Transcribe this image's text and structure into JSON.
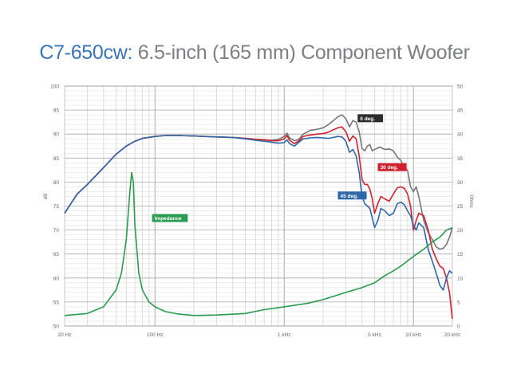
{
  "header": {
    "model": "C7-650cw:",
    "description": " 6.5-inch (165 mm) Component Woofer"
  },
  "chart_data": {
    "type": "line",
    "title": "C7-650cw: 6.5-inch (165 mm) Component Woofer",
    "xlabel": "",
    "x_scale": "log",
    "xlim": [
      20,
      20000
    ],
    "x_ticks": [
      {
        "value": 20,
        "label": "20 Hz"
      },
      {
        "value": 100,
        "label": "100 Hz"
      },
      {
        "value": 1000,
        "label": "1 kHz"
      },
      {
        "value": 5000,
        "label": "5 kHz"
      },
      {
        "value": 10000,
        "label": "10 kHz"
      },
      {
        "value": 20000,
        "label": "20 kHz"
      }
    ],
    "ylabel_left": "dB",
    "ylim_left": [
      50,
      100
    ],
    "y_ticks_left": [
      50,
      55,
      60,
      65,
      70,
      75,
      80,
      85,
      90,
      95,
      100
    ],
    "ylabel_right": "Ohms",
    "ylim_right": [
      0,
      50
    ],
    "y_ticks_right": [
      0,
      5,
      10,
      15,
      20,
      25,
      30,
      35,
      40,
      45,
      50
    ],
    "grid": true,
    "series": [
      {
        "name": "0 deg.",
        "axis": "left",
        "color": "#76777a",
        "label_color": "#2b2b2b",
        "label_at": [
          3700,
          93.3
        ],
        "points": [
          [
            20,
            73.5
          ],
          [
            25,
            77.5
          ],
          [
            30,
            79.5
          ],
          [
            40,
            83
          ],
          [
            50,
            85.8
          ],
          [
            60,
            87.5
          ],
          [
            70,
            88.5
          ],
          [
            80,
            89.1
          ],
          [
            100,
            89.5
          ],
          [
            120,
            89.7
          ],
          [
            150,
            89.7
          ],
          [
            200,
            89.6
          ],
          [
            300,
            89.4
          ],
          [
            400,
            89.3
          ],
          [
            500,
            89.1
          ],
          [
            600,
            88.9
          ],
          [
            700,
            88.8
          ],
          [
            800,
            88.7
          ],
          [
            900,
            88.9
          ],
          [
            1000,
            89.5
          ],
          [
            1050,
            90.2
          ],
          [
            1100,
            89.2
          ],
          [
            1200,
            88.6
          ],
          [
            1300,
            88.9
          ],
          [
            1400,
            90
          ],
          [
            1600,
            90.8
          ],
          [
            1800,
            91
          ],
          [
            2000,
            91.3
          ],
          [
            2200,
            92
          ],
          [
            2400,
            92.8
          ],
          [
            2600,
            93.6
          ],
          [
            2800,
            94
          ],
          [
            3000,
            93.2
          ],
          [
            3200,
            91.5
          ],
          [
            3400,
            92.8
          ],
          [
            3600,
            92.5
          ],
          [
            3800,
            90.5
          ],
          [
            4000,
            87
          ],
          [
            4200,
            86.5
          ],
          [
            4400,
            87.5
          ],
          [
            4600,
            87.8
          ],
          [
            4800,
            86.5
          ],
          [
            5000,
            86.8
          ],
          [
            5500,
            87.3
          ],
          [
            6000,
            86.8
          ],
          [
            6500,
            86.9
          ],
          [
            7000,
            86.5
          ],
          [
            7500,
            85.2
          ],
          [
            8000,
            84.5
          ],
          [
            8500,
            83
          ],
          [
            9000,
            82.5
          ],
          [
            9500,
            79
          ],
          [
            10000,
            78
          ],
          [
            10500,
            79
          ],
          [
            11000,
            77
          ],
          [
            12000,
            72
          ],
          [
            13000,
            69.5
          ],
          [
            14000,
            68
          ],
          [
            15000,
            66.5
          ],
          [
            16000,
            66
          ],
          [
            17000,
            66.2
          ],
          [
            18000,
            67
          ],
          [
            19000,
            68.5
          ],
          [
            20000,
            70.5
          ]
        ]
      },
      {
        "name": "30 deg.",
        "axis": "left",
        "color": "#d0222e",
        "label_color": "#d0222e",
        "label_at": [
          5300,
          83.1
        ],
        "points": [
          [
            20,
            73.5
          ],
          [
            25,
            77.5
          ],
          [
            30,
            79.5
          ],
          [
            40,
            83
          ],
          [
            50,
            85.8
          ],
          [
            60,
            87.5
          ],
          [
            70,
            88.5
          ],
          [
            80,
            89.1
          ],
          [
            100,
            89.5
          ],
          [
            120,
            89.7
          ],
          [
            150,
            89.7
          ],
          [
            200,
            89.6
          ],
          [
            300,
            89.4
          ],
          [
            400,
            89.3
          ],
          [
            500,
            89.1
          ],
          [
            600,
            88.9
          ],
          [
            700,
            88.8
          ],
          [
            800,
            88.6
          ],
          [
            900,
            88.6
          ],
          [
            1000,
            89
          ],
          [
            1050,
            89.7
          ],
          [
            1100,
            88.7
          ],
          [
            1200,
            88
          ],
          [
            1300,
            88.6
          ],
          [
            1400,
            89.5
          ],
          [
            1600,
            89.8
          ],
          [
            1800,
            90
          ],
          [
            2000,
            90.1
          ],
          [
            2200,
            90.4
          ],
          [
            2400,
            90.9
          ],
          [
            2600,
            91.3
          ],
          [
            2800,
            91.5
          ],
          [
            3000,
            90.5
          ],
          [
            3200,
            88.5
          ],
          [
            3400,
            89.6
          ],
          [
            3600,
            89
          ],
          [
            3800,
            85.5
          ],
          [
            4000,
            80.5
          ],
          [
            4200,
            79.5
          ],
          [
            4400,
            79.5
          ],
          [
            4600,
            78.5
          ],
          [
            4800,
            76.5
          ],
          [
            5000,
            73.5
          ],
          [
            5300,
            75.5
          ],
          [
            5600,
            77
          ],
          [
            6000,
            76.5
          ],
          [
            6500,
            76
          ],
          [
            7000,
            77.5
          ],
          [
            7500,
            78.8
          ],
          [
            8000,
            79
          ],
          [
            8500,
            78.7
          ],
          [
            9000,
            77.5
          ],
          [
            9500,
            75
          ],
          [
            10000,
            70
          ],
          [
            10500,
            72
          ],
          [
            11000,
            73.5
          ],
          [
            12000,
            73
          ],
          [
            13000,
            70
          ],
          [
            14000,
            66
          ],
          [
            15000,
            64
          ],
          [
            16000,
            62.5
          ],
          [
            17000,
            62
          ],
          [
            18000,
            60
          ],
          [
            19000,
            57
          ],
          [
            20000,
            51.5
          ]
        ]
      },
      {
        "name": "45 deg.",
        "axis": "left",
        "color": "#2e68aa",
        "label_color": "#2e68aa",
        "label_at": [
          2600,
          77.2
        ],
        "points": [
          [
            20,
            73.5
          ],
          [
            25,
            77.5
          ],
          [
            30,
            79.5
          ],
          [
            40,
            83
          ],
          [
            50,
            85.8
          ],
          [
            60,
            87.5
          ],
          [
            70,
            88.5
          ],
          [
            80,
            89.1
          ],
          [
            100,
            89.5
          ],
          [
            120,
            89.7
          ],
          [
            150,
            89.7
          ],
          [
            200,
            89.6
          ],
          [
            300,
            89.4
          ],
          [
            400,
            89.3
          ],
          [
            500,
            89
          ],
          [
            600,
            88.7
          ],
          [
            700,
            88.5
          ],
          [
            800,
            88.3
          ],
          [
            900,
            88.1
          ],
          [
            1000,
            88.2
          ],
          [
            1050,
            88.8
          ],
          [
            1100,
            88
          ],
          [
            1200,
            87.5
          ],
          [
            1300,
            88.3
          ],
          [
            1400,
            89
          ],
          [
            1600,
            89.2
          ],
          [
            1800,
            89.3
          ],
          [
            2000,
            89.2
          ],
          [
            2200,
            89.1
          ],
          [
            2400,
            89.3
          ],
          [
            2600,
            89.5
          ],
          [
            2800,
            89.4
          ],
          [
            3000,
            88.5
          ],
          [
            3200,
            86.2
          ],
          [
            3400,
            86.8
          ],
          [
            3600,
            85.5
          ],
          [
            3800,
            82
          ],
          [
            4000,
            77
          ],
          [
            4200,
            75.5
          ],
          [
            4400,
            75
          ],
          [
            4600,
            74.5
          ],
          [
            4800,
            72.5
          ],
          [
            5000,
            70.5
          ],
          [
            5300,
            72
          ],
          [
            5600,
            74.5
          ],
          [
            6000,
            74
          ],
          [
            6500,
            73
          ],
          [
            7000,
            73.5
          ],
          [
            7500,
            75.5
          ],
          [
            8000,
            75.8
          ],
          [
            8500,
            75.3
          ],
          [
            9000,
            74
          ],
          [
            9500,
            73
          ],
          [
            10000,
            71
          ],
          [
            10500,
            70
          ],
          [
            11000,
            71.5
          ],
          [
            12000,
            70.5
          ],
          [
            13000,
            66
          ],
          [
            14000,
            63.5
          ],
          [
            15000,
            61
          ],
          [
            16000,
            58.5
          ],
          [
            17000,
            57.5
          ],
          [
            18000,
            60
          ],
          [
            19000,
            61.5
          ],
          [
            20000,
            61
          ]
        ]
      },
      {
        "name": "Impedance",
        "axis": "right",
        "color": "#2a9b50",
        "label_color": "#2a9b50",
        "label_at": [
          95,
          22.5
        ],
        "points": [
          [
            20,
            2.2
          ],
          [
            30,
            2.6
          ],
          [
            40,
            4
          ],
          [
            50,
            7.5
          ],
          [
            55,
            11
          ],
          [
            60,
            18
          ],
          [
            64,
            28
          ],
          [
            66,
            32
          ],
          [
            68,
            30
          ],
          [
            70,
            21
          ],
          [
            75,
            11
          ],
          [
            80,
            7.5
          ],
          [
            90,
            5
          ],
          [
            100,
            4
          ],
          [
            120,
            3
          ],
          [
            150,
            2.5
          ],
          [
            200,
            2.2
          ],
          [
            300,
            2.3
          ],
          [
            500,
            2.6
          ],
          [
            700,
            3.4
          ],
          [
            1000,
            4
          ],
          [
            1500,
            4.7
          ],
          [
            2000,
            5.5
          ],
          [
            3000,
            7
          ],
          [
            4000,
            8
          ],
          [
            5000,
            9
          ],
          [
            6000,
            10.5
          ],
          [
            7000,
            11.5
          ],
          [
            8000,
            12.5
          ],
          [
            10000,
            14.5
          ],
          [
            12000,
            16
          ],
          [
            14000,
            17.5
          ],
          [
            16000,
            18.5
          ],
          [
            18000,
            20
          ],
          [
            20000,
            20.5
          ]
        ]
      }
    ]
  }
}
